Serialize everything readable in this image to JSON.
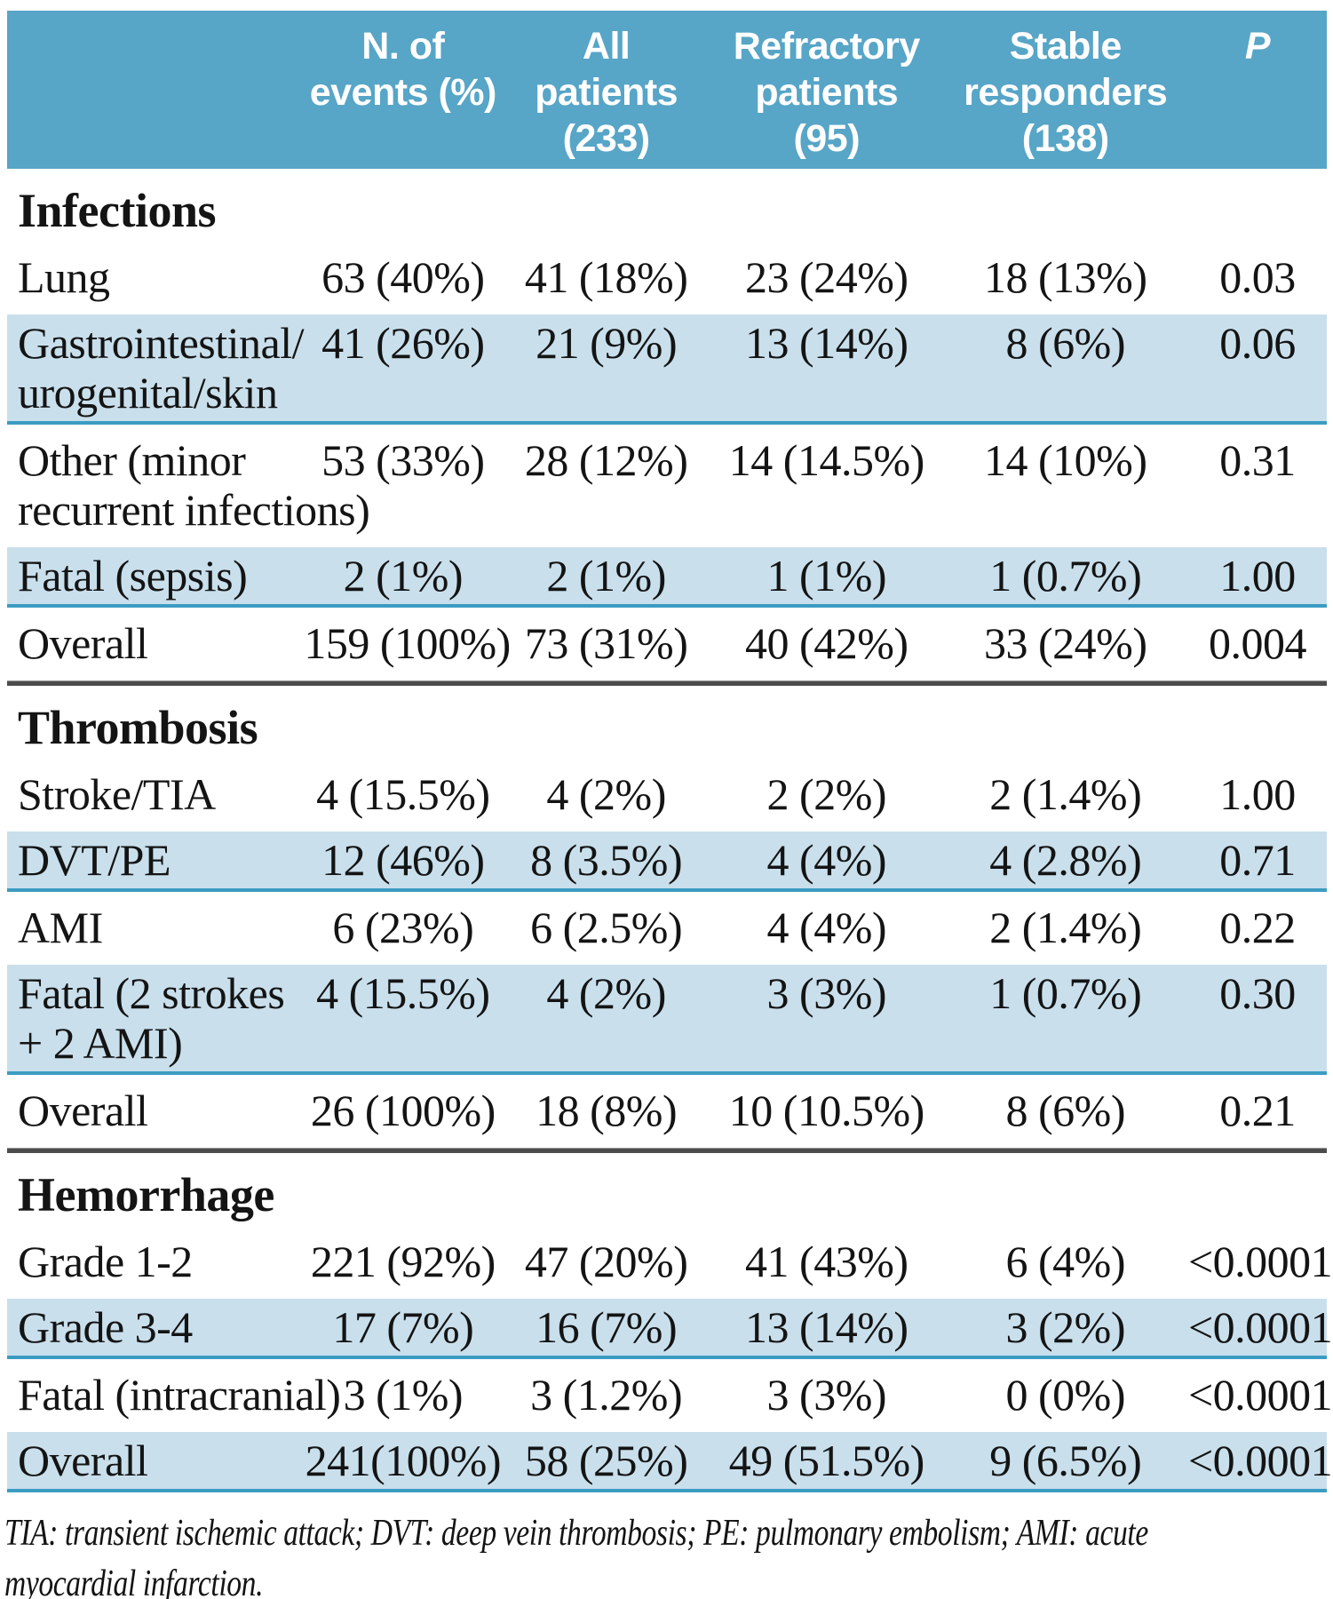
{
  "colors": {
    "header_bg": "#57a5c7",
    "header_text": "#ffffff",
    "stripe_bg": "#c9dfec",
    "stripe_border": "#3b9cc2",
    "section_rule": "#4c4c4c",
    "text": "#141414",
    "page_bg": "#ffffff"
  },
  "table": {
    "header": {
      "columns": [
        "N. of\nevents (%)",
        "All\npatients\n(233)",
        "Refractory\npatients\n(95)",
        "Stable\nresponders\n(138)",
        "P"
      ]
    },
    "sections": [
      {
        "title": "Infections",
        "rows": [
          {
            "label": "Lung",
            "values": [
              "63 (40%)",
              "41 (18%)",
              "23 (24%)",
              "18 (13%)",
              "0.03"
            ],
            "shaded": false
          },
          {
            "label": "Gastrointestinal/\nurogenital/skin",
            "values": [
              "41 (26%)",
              "21 (9%)",
              "13 (14%)",
              "8 (6%)",
              "0.06"
            ],
            "shaded": true
          },
          {
            "label": "Other (minor\nrecurrent infections)",
            "values": [
              "53 (33%)",
              "28 (12%)",
              "14 (14.5%)",
              "14 (10%)",
              "0.31"
            ],
            "shaded": false
          },
          {
            "label": "Fatal (sepsis)",
            "values": [
              "2 (1%)",
              "2 (1%)",
              "1 (1%)",
              "1 (0.7%)",
              "1.00"
            ],
            "shaded": true
          },
          {
            "label": "Overall",
            "values": [
              "159 (100%)",
              "73 (31%)",
              "40 (42%)",
              "33 (24%)",
              "0.004"
            ],
            "shaded": false
          }
        ]
      },
      {
        "title": "Thrombosis",
        "rows": [
          {
            "label": "Stroke/TIA",
            "values": [
              "4 (15.5%)",
              "4 (2%)",
              "2 (2%)",
              "2 (1.4%)",
              "1.00"
            ],
            "shaded": false
          },
          {
            "label": "DVT/PE",
            "values": [
              "12 (46%)",
              "8 (3.5%)",
              "4 (4%)",
              "4 (2.8%)",
              "0.71"
            ],
            "shaded": true
          },
          {
            "label": "AMI",
            "values": [
              "6 (23%)",
              "6 (2.5%)",
              "4 (4%)",
              "2 (1.4%)",
              "0.22"
            ],
            "shaded": false
          },
          {
            "label": "Fatal (2 strokes\n+ 2 AMI)",
            "values": [
              "4 (15.5%)",
              "4 (2%)",
              "3 (3%)",
              "1 (0.7%)",
              "0.30"
            ],
            "shaded": true
          },
          {
            "label": "Overall",
            "values": [
              "26 (100%)",
              "18 (8%)",
              "10 (10.5%)",
              "8 (6%)",
              "0.21"
            ],
            "shaded": false
          }
        ]
      },
      {
        "title": "Hemorrhage",
        "rows": [
          {
            "label": "Grade 1-2",
            "values": [
              "221 (92%)",
              "47 (20%)",
              "41 (43%)",
              "6 (4%)",
              "<0.0001"
            ],
            "shaded": false
          },
          {
            "label": "Grade 3-4",
            "values": [
              "17 (7%)",
              "16 (7%)",
              "13 (14%)",
              "3 (2%)",
              "<0.0001"
            ],
            "shaded": true
          },
          {
            "label": "Fatal (intracranial)",
            "values": [
              "3 (1%)",
              "3 (1.2%)",
              "3 (3%)",
              "0 (0%)",
              "<0.0001"
            ],
            "shaded": false
          },
          {
            "label": "Overall",
            "values": [
              "241(100%)",
              "58 (25%)",
              "49 (51.5%)",
              "9 (6.5%)",
              "<0.0001"
            ],
            "shaded": true
          }
        ]
      }
    ]
  },
  "footnote": "TIA: transient ischemic attack; DVT: deep vein thrombosis; PE: pulmonary embolism; AMI: acute\nmyocardial infarction."
}
